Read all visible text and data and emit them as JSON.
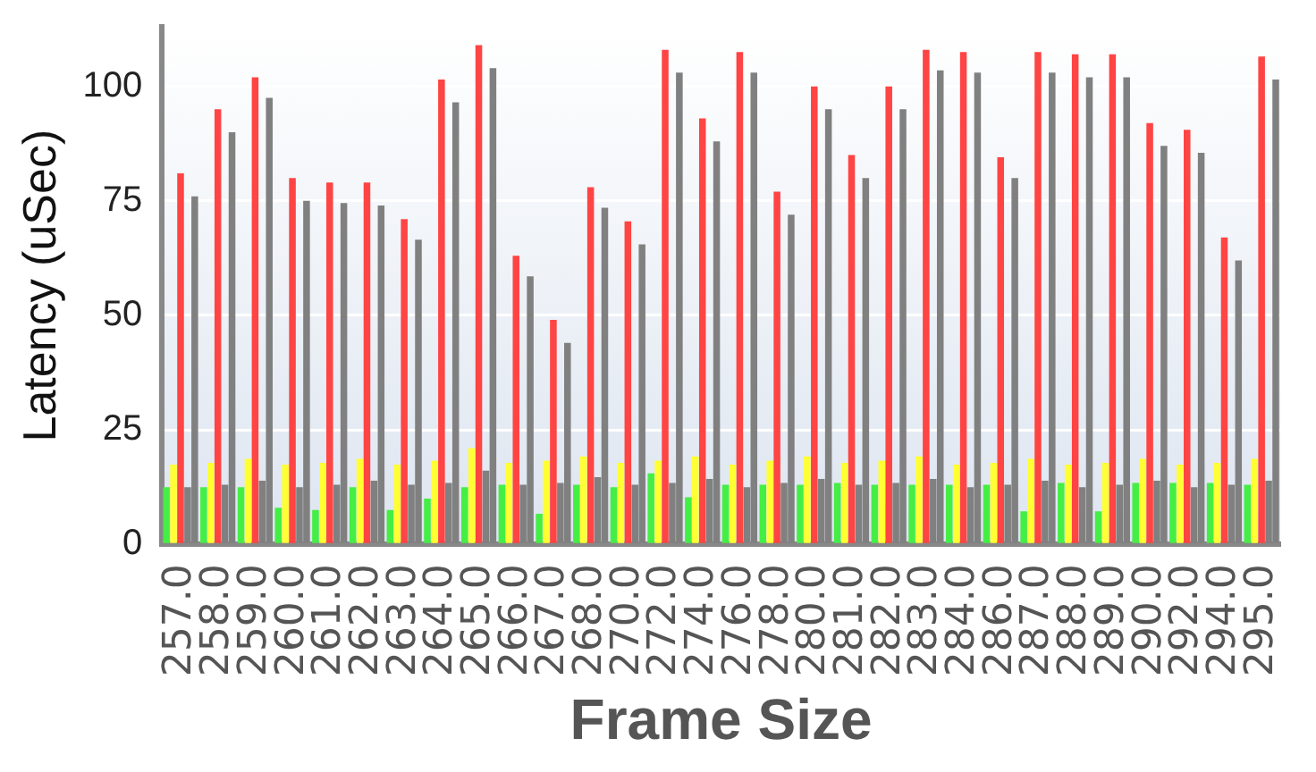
{
  "chart_data": {
    "type": "bar",
    "xlabel": "Frame Size",
    "ylabel": "Latency (uSec)",
    "categories": [
      "257.0",
      "258.0",
      "259.0",
      "260.0",
      "261.0",
      "262.0",
      "263.0",
      "264.0",
      "265.0",
      "266.0",
      "267.0",
      "268.0",
      "270.0",
      "272.0",
      "274.0",
      "276.0",
      "278.0",
      "280.0",
      "281.0",
      "282.0",
      "283.0",
      "284.0",
      "286.0",
      "287.0",
      "288.0",
      "289.0",
      "290.0",
      "292.0",
      "294.0",
      "295.0"
    ],
    "series": [
      {
        "color": "#44ee44",
        "values": [
          12.5,
          12.5,
          12.5,
          8,
          7.5,
          12.5,
          7.5,
          10,
          12.5,
          13,
          6.7,
          13,
          12.5,
          15.5,
          10.3,
          13,
          13,
          13,
          13.4,
          13,
          13,
          13,
          13,
          7.2,
          13.4,
          7.2,
          13.4,
          13.4,
          13.4,
          13
        ]
      },
      {
        "color": "#ffff33",
        "values": [
          17.4,
          17.8,
          18.7,
          17.4,
          17.8,
          18.7,
          17.4,
          18.3,
          21,
          17.8,
          18.3,
          19.2,
          17.8,
          18.3,
          19.2,
          17.4,
          18.3,
          19.2,
          17.8,
          18.3,
          19.2,
          17.4,
          17.8,
          18.7,
          17.4,
          17.8,
          18.7,
          17.4,
          17.8,
          18.7
        ]
      },
      {
        "color": "#ff4444",
        "values": [
          81,
          95,
          102,
          80,
          79,
          79,
          71,
          101.5,
          109,
          63,
          49,
          78,
          70.5,
          108,
          93,
          107.5,
          77,
          100,
          85,
          100,
          108,
          107.5,
          84.5,
          107.5,
          107,
          107,
          92,
          90.5,
          67,
          106.5
        ]
      },
      {
        "color": "#808080",
        "values": [
          12.5,
          13,
          13.9,
          12.5,
          13,
          13.9,
          13,
          13.4,
          16.1,
          13,
          13.4,
          14.7,
          13,
          13.4,
          14.3,
          12.5,
          13.4,
          14.3,
          13,
          13.4,
          14.3,
          12.5,
          13,
          13.9,
          12.5,
          13,
          13.9,
          12.5,
          13,
          13.9
        ]
      },
      {
        "color": "#808080",
        "values": [
          76,
          90,
          97.5,
          75,
          74.5,
          74,
          66.5,
          96.5,
          104,
          58.5,
          44,
          73.5,
          65.5,
          103,
          88,
          103,
          72,
          95,
          80,
          95,
          103.5,
          103,
          80,
          103,
          102,
          102,
          87,
          85.5,
          62,
          101.5
        ]
      }
    ],
    "ylim": [
      0,
      113
    ],
    "yticks": [
      0,
      25,
      50,
      75,
      100
    ],
    "grid": "y",
    "legend": false
  }
}
